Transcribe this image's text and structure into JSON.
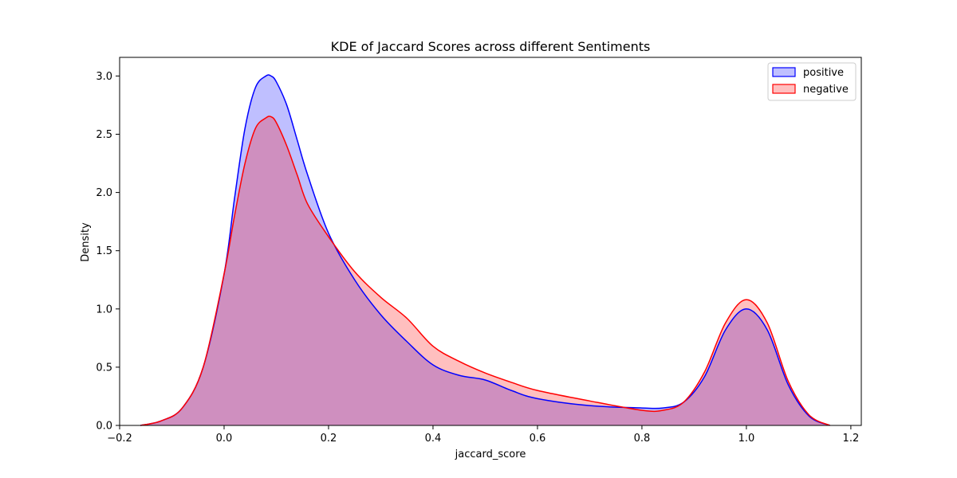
{
  "chart_data": {
    "type": "area",
    "title": "KDE of Jaccard Scores across different Sentiments",
    "xlabel": "jaccard_score",
    "ylabel": "Density",
    "xlim": [
      -0.2,
      1.22
    ],
    "ylim": [
      0,
      3.16
    ],
    "xticks": [
      -0.2,
      0.0,
      0.2,
      0.4,
      0.6,
      0.8,
      1.0,
      1.2
    ],
    "xtick_labels": [
      "−0.2",
      "0.0",
      "0.2",
      "0.4",
      "0.6",
      "0.8",
      "1.0",
      "1.2"
    ],
    "yticks": [
      0.0,
      0.5,
      1.0,
      1.5,
      2.0,
      2.5,
      3.0
    ],
    "ytick_labels": [
      "0.0",
      "0.5",
      "1.0",
      "1.5",
      "2.0",
      "2.5",
      "3.0"
    ],
    "grid": false,
    "legend_position": "top-right",
    "series": [
      {
        "name": "positive",
        "color": "#0000ff",
        "fill": "#bfbfff",
        "x": [
          -0.16,
          -0.12,
          -0.08,
          -0.04,
          0.0,
          0.02,
          0.04,
          0.06,
          0.08,
          0.09,
          0.1,
          0.12,
          0.14,
          0.16,
          0.2,
          0.25,
          0.3,
          0.35,
          0.4,
          0.45,
          0.5,
          0.55,
          0.6,
          0.7,
          0.8,
          0.84,
          0.88,
          0.92,
          0.96,
          1.0,
          1.04,
          1.08,
          1.12,
          1.16
        ],
        "y": [
          0.0,
          0.04,
          0.15,
          0.5,
          1.3,
          1.95,
          2.55,
          2.9,
          3.0,
          3.0,
          2.95,
          2.75,
          2.45,
          2.15,
          1.65,
          1.25,
          0.95,
          0.72,
          0.52,
          0.43,
          0.39,
          0.3,
          0.23,
          0.17,
          0.15,
          0.15,
          0.2,
          0.42,
          0.82,
          1.0,
          0.82,
          0.35,
          0.08,
          0.0
        ]
      },
      {
        "name": "negative",
        "color": "#ff0000",
        "fill": "#ffbfbf",
        "x": [
          -0.16,
          -0.12,
          -0.08,
          -0.04,
          0.0,
          0.02,
          0.04,
          0.06,
          0.08,
          0.09,
          0.1,
          0.12,
          0.14,
          0.16,
          0.2,
          0.25,
          0.3,
          0.35,
          0.4,
          0.45,
          0.5,
          0.55,
          0.6,
          0.7,
          0.8,
          0.84,
          0.88,
          0.92,
          0.96,
          1.0,
          1.04,
          1.08,
          1.12,
          1.16
        ],
        "y": [
          0.0,
          0.04,
          0.15,
          0.5,
          1.3,
          1.8,
          2.25,
          2.55,
          2.64,
          2.65,
          2.6,
          2.4,
          2.15,
          1.9,
          1.62,
          1.32,
          1.1,
          0.92,
          0.68,
          0.55,
          0.45,
          0.37,
          0.3,
          0.21,
          0.13,
          0.13,
          0.2,
          0.46,
          0.88,
          1.08,
          0.88,
          0.38,
          0.09,
          0.0
        ]
      }
    ]
  }
}
